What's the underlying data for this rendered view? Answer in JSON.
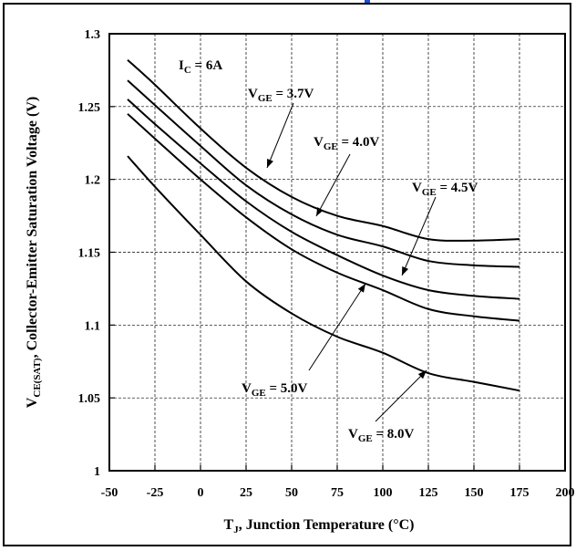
{
  "chart_data": {
    "type": "line",
    "title": "",
    "xlabel": {
      "main": "T",
      "sub": "J",
      "rest": ", Junction Temperature (°C)"
    },
    "ylabel": {
      "main": "V",
      "sub": "CE(SAT)",
      "rest": ", Collector-Emitter Saturation Voltage (V)"
    },
    "xlim": [
      -50,
      200
    ],
    "ylim": [
      1.0,
      1.3
    ],
    "xticks": [
      -50,
      -25,
      0,
      25,
      50,
      75,
      100,
      125,
      150,
      175,
      200
    ],
    "yticks": [
      1,
      1.05,
      1.1,
      1.15,
      1.2,
      1.25,
      1.3
    ],
    "xtick_labels": [
      "-50",
      "-25",
      "0",
      "25",
      "50",
      "75",
      "100",
      "125",
      "150",
      "175",
      "200"
    ],
    "ytick_labels": [
      "1",
      "1.05",
      "1.1",
      "1.15",
      "1.2",
      "1.25",
      "1.3"
    ],
    "grid": true,
    "condition": {
      "main": "I",
      "sub": "C",
      "rest": " = 6A"
    },
    "series": [
      {
        "name": "V_GE = 3.7V",
        "label_main": "V",
        "label_sub": "GE",
        "label_rest": " = 3.7V",
        "x": [
          -40,
          -25,
          0,
          25,
          50,
          75,
          100,
          125,
          150,
          175
        ],
        "y": [
          1.282,
          1.265,
          1.235,
          1.208,
          1.188,
          1.175,
          1.168,
          1.159,
          1.158,
          1.159
        ]
      },
      {
        "name": "V_GE = 4.0V",
        "label_main": "V",
        "label_sub": "GE",
        "label_rest": " = 4.0V",
        "x": [
          -40,
          -25,
          0,
          25,
          50,
          75,
          100,
          125,
          150,
          175
        ],
        "y": [
          1.268,
          1.251,
          1.223,
          1.196,
          1.176,
          1.162,
          1.154,
          1.144,
          1.141,
          1.14
        ]
      },
      {
        "name": "V_GE = 4.5V",
        "label_main": "V",
        "label_sub": "GE",
        "label_rest": " = 4.5V",
        "x": [
          -40,
          -25,
          0,
          25,
          50,
          75,
          100,
          125,
          150,
          175
        ],
        "y": [
          1.255,
          1.238,
          1.211,
          1.185,
          1.164,
          1.148,
          1.134,
          1.124,
          1.12,
          1.118
        ]
      },
      {
        "name": "V_GE = 5.0V",
        "label_main": "V",
        "label_sub": "GE",
        "label_rest": " = 5.0V",
        "x": [
          -40,
          -25,
          0,
          25,
          50,
          75,
          100,
          125,
          150,
          175
        ],
        "y": [
          1.245,
          1.228,
          1.2,
          1.174,
          1.152,
          1.136,
          1.124,
          1.111,
          1.106,
          1.103
        ]
      },
      {
        "name": "V_GE = 8.0V",
        "label_main": "V",
        "label_sub": "GE",
        "label_rest": " = 8.0V",
        "x": [
          -40,
          -25,
          0,
          25,
          50,
          75,
          100,
          125,
          150,
          175
        ],
        "y": [
          1.216,
          1.195,
          1.162,
          1.13,
          1.108,
          1.092,
          1.081,
          1.067,
          1.061,
          1.055
        ]
      }
    ]
  }
}
